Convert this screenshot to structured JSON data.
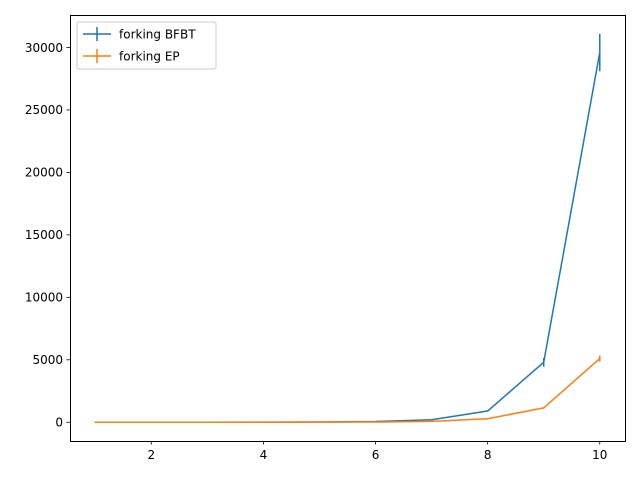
{
  "chart_data": {
    "type": "line",
    "title": "",
    "xlabel": "",
    "ylabel": "",
    "x": [
      1,
      2,
      3,
      4,
      5,
      6,
      7,
      8,
      9,
      10
    ],
    "xlim": [
      0.55,
      10.45
    ],
    "ylim": [
      -1500,
      32600
    ],
    "xticks": [
      2,
      4,
      6,
      8,
      10
    ],
    "yticks": [
      0,
      5000,
      10000,
      15000,
      20000,
      25000,
      30000
    ],
    "grid": false,
    "legend_position": "top-left",
    "series": [
      {
        "name": "forking BFBT",
        "color": "#1f77b4",
        "values": [
          1,
          2,
          4,
          8,
          25,
          60,
          200,
          900,
          4800,
          29600
        ],
        "errors": [
          0,
          0,
          0,
          0,
          0,
          0,
          0,
          50,
          350,
          1500
        ]
      },
      {
        "name": "forking EP",
        "color": "#ff7f0e",
        "values": [
          1,
          1,
          2,
          3,
          8,
          20,
          70,
          280,
          1150,
          5100
        ],
        "errors": [
          0,
          0,
          0,
          0,
          0,
          0,
          0,
          20,
          60,
          250
        ]
      }
    ]
  }
}
